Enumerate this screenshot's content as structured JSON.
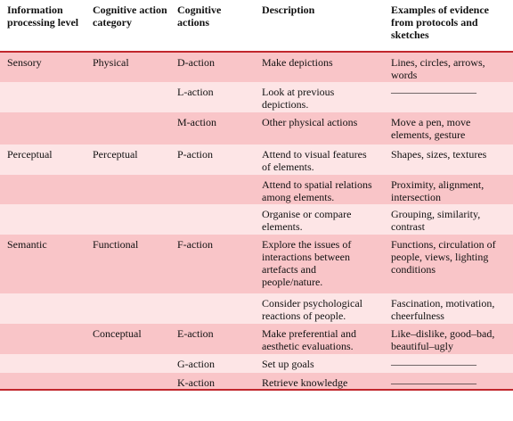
{
  "table": {
    "header": [
      "Information processing level",
      "Cognitive action category",
      "Cognitive actions",
      "Description",
      "Examples of evidence from protocols and sketches"
    ],
    "rows": [
      [
        "Sensory",
        "Physical",
        "D-action",
        "Make depictions",
        "Lines, circles, arrows, words"
      ],
      [
        null,
        null,
        "L-action",
        "Look at previous depictions.",
        "————————"
      ],
      [
        null,
        null,
        "M-action",
        "Other physical actions",
        "Move a pen, move elements, gesture"
      ],
      [
        "Perceptual",
        "Perceptual",
        "P-action",
        "Attend to visual features of elements.",
        "Shapes, sizes, textures"
      ],
      [
        null,
        null,
        null,
        "Attend to spatial relations among elements.",
        "Proximity, alignment, intersection"
      ],
      [
        null,
        null,
        null,
        "Organise or compare elements.",
        "Grouping, similarity, contrast"
      ],
      [
        "Semantic",
        "Functional",
        "F-action",
        "Explore the issues of interactions between artefacts and people/nature.",
        "Functions, circulation of people, views, lighting conditions"
      ],
      [
        null,
        null,
        null,
        "Consider psychological reactions of people.",
        "Fascination, motivation, cheerfulness"
      ],
      [
        null,
        "Conceptual",
        "E-action",
        "Make preferential and aesthetic evaluations.",
        "Like–dislike, good–bad, beautiful–ugly"
      ],
      [
        null,
        null,
        "G-action",
        "Set up goals",
        "————————"
      ],
      [
        null,
        null,
        "K-action",
        "Retrieve knowledge",
        "————————"
      ]
    ]
  }
}
